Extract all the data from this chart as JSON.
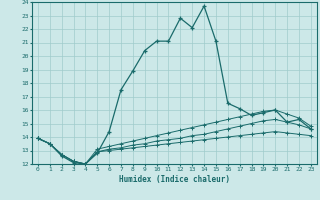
{
  "xlabel": "Humidex (Indice chaleur)",
  "bg_color": "#cce8e8",
  "line_color": "#1a6b6b",
  "grid_color": "#a0cccc",
  "xlim": [
    -0.5,
    23.5
  ],
  "ylim": [
    12,
    24
  ],
  "xticks": [
    0,
    1,
    2,
    3,
    4,
    5,
    6,
    7,
    8,
    9,
    10,
    11,
    12,
    13,
    14,
    15,
    16,
    17,
    18,
    19,
    20,
    21,
    22,
    23
  ],
  "yticks": [
    12,
    13,
    14,
    15,
    16,
    17,
    18,
    19,
    20,
    21,
    22,
    23,
    24
  ],
  "line1_x": [
    0,
    1,
    2,
    3,
    4,
    5,
    6,
    7,
    8,
    9,
    10,
    11,
    12,
    13,
    14,
    15,
    16,
    17,
    18,
    19,
    20,
    21,
    22,
    23
  ],
  "line1_y": [
    13.9,
    13.5,
    12.6,
    12.1,
    12.0,
    12.8,
    14.4,
    17.5,
    18.9,
    20.4,
    21.1,
    21.1,
    22.8,
    22.1,
    23.7,
    21.1,
    16.5,
    16.1,
    15.6,
    15.8,
    16.0,
    15.1,
    15.3,
    14.6
  ],
  "line2_x": [
    0,
    1,
    2,
    3,
    4,
    5,
    6,
    7,
    8,
    9,
    10,
    11,
    12,
    13,
    14,
    15,
    16,
    17,
    18,
    19,
    20,
    21,
    22,
    23
  ],
  "line2_y": [
    13.9,
    13.5,
    12.7,
    12.2,
    12.0,
    13.1,
    13.3,
    13.5,
    13.7,
    13.9,
    14.1,
    14.3,
    14.5,
    14.7,
    14.9,
    15.1,
    15.3,
    15.5,
    15.7,
    15.9,
    16.0,
    15.7,
    15.4,
    14.8
  ],
  "line3_x": [
    0,
    1,
    2,
    3,
    4,
    5,
    6,
    7,
    8,
    9,
    10,
    11,
    12,
    13,
    14,
    15,
    16,
    17,
    18,
    19,
    20,
    21,
    22,
    23
  ],
  "line3_y": [
    13.9,
    13.5,
    12.7,
    12.2,
    12.0,
    12.9,
    13.1,
    13.2,
    13.4,
    13.5,
    13.7,
    13.8,
    13.9,
    14.1,
    14.2,
    14.4,
    14.6,
    14.8,
    15.0,
    15.2,
    15.3,
    15.1,
    14.9,
    14.6
  ],
  "line4_x": [
    0,
    1,
    2,
    3,
    4,
    5,
    6,
    7,
    8,
    9,
    10,
    11,
    12,
    13,
    14,
    15,
    16,
    17,
    18,
    19,
    20,
    21,
    22,
    23
  ],
  "line4_y": [
    13.9,
    13.5,
    12.7,
    12.2,
    12.0,
    12.9,
    13.0,
    13.1,
    13.2,
    13.3,
    13.4,
    13.5,
    13.6,
    13.7,
    13.8,
    13.9,
    14.0,
    14.1,
    14.2,
    14.3,
    14.4,
    14.3,
    14.2,
    14.1
  ]
}
